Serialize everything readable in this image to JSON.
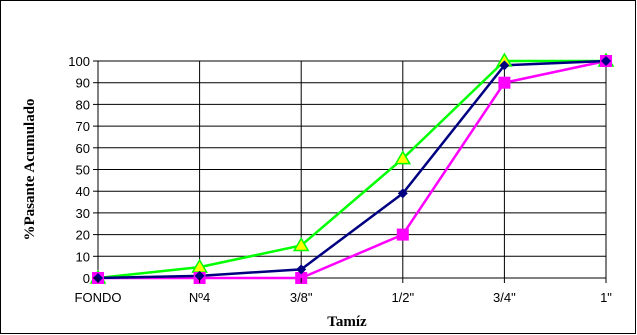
{
  "chart_data": {
    "type": "line",
    "title": "",
    "xlabel": "Tamíz",
    "ylabel": "%Pasante Acumulado",
    "categories": [
      "FONDO",
      "Nº4",
      "3/8\"",
      "1/2\"",
      "3/4\"",
      "1\""
    ],
    "ylim": [
      0,
      100
    ],
    "yticks": [
      0,
      10,
      20,
      30,
      40,
      50,
      60,
      70,
      80,
      90,
      100
    ],
    "grid": true,
    "legend": "none",
    "series": [
      {
        "values": [
          0,
          5,
          15,
          55,
          100,
          100
        ],
        "color": "#00FF00",
        "marker": "triangle",
        "marker_color": "#FFFF00"
      },
      {
        "values": [
          0,
          1,
          4,
          39,
          98,
          100
        ],
        "color": "#000080",
        "marker": "diamond",
        "marker_color": "#000080"
      },
      {
        "values": [
          0,
          0,
          0,
          20,
          90,
          100
        ],
        "color": "#FF00FF",
        "marker": "square",
        "marker_color": "#FF00FF"
      }
    ]
  }
}
